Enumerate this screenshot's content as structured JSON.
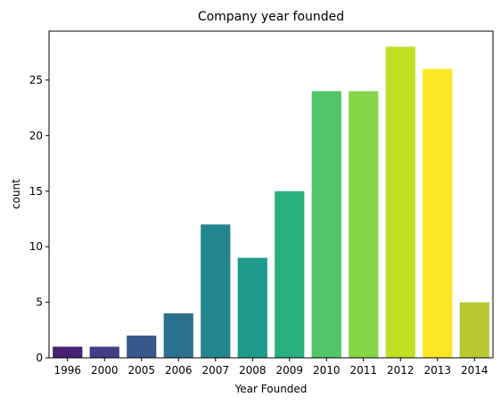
{
  "chart_data": {
    "type": "bar",
    "title": "Company year founded",
    "xlabel": "Year Founded",
    "ylabel": "count",
    "categories": [
      "1996",
      "2000",
      "2005",
      "2006",
      "2007",
      "2008",
      "2009",
      "2010",
      "2011",
      "2012",
      "2013",
      "2014"
    ],
    "values": [
      1,
      1,
      2,
      4,
      12,
      9,
      15,
      24,
      24,
      28,
      26,
      5
    ],
    "colors": [
      "#482173",
      "#433e85",
      "#38588c",
      "#2d708e",
      "#25858e",
      "#1e9b8a",
      "#2ab07f",
      "#52c569",
      "#86d549",
      "#c2df23",
      "#fde725",
      "#b9c930"
    ],
    "ylim": [
      0,
      29.4
    ],
    "yticks": [
      0,
      5,
      10,
      15,
      20,
      25
    ],
    "grid": false,
    "legend": "none"
  }
}
